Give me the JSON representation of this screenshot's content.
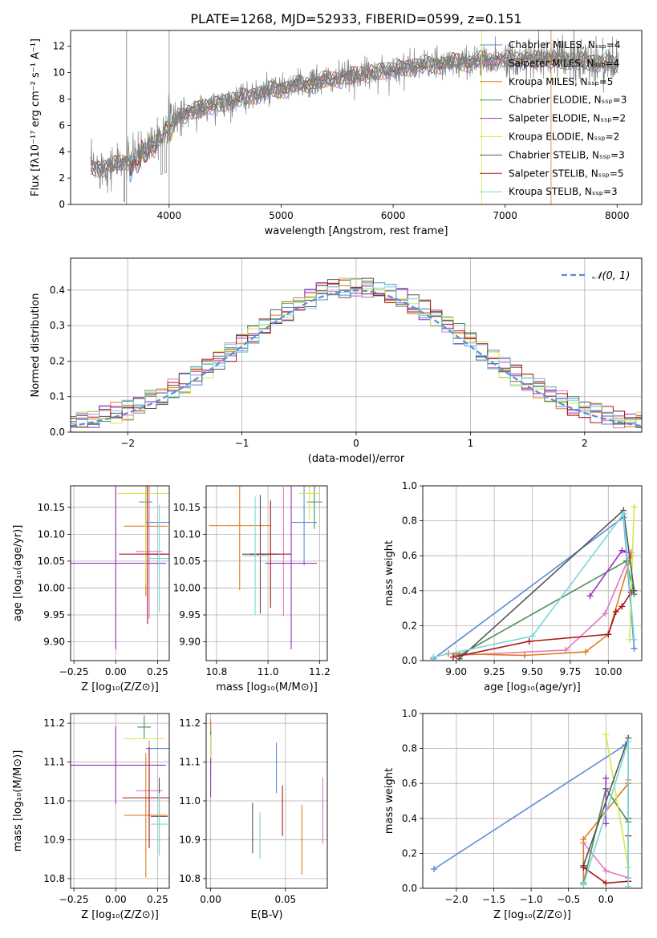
{
  "page_title": "PLATE=1268, MJD=52933, FIBERID=0599, z=0.151",
  "colors": {
    "data": "#808080",
    "series": [
      "#5b8bd9",
      "#e377c2",
      "#e07b21",
      "#4e8c57",
      "#9b30c0",
      "#d6e84a",
      "#555555",
      "#a81818",
      "#76d7d7"
    ],
    "normal": "#5b8bd9"
  },
  "legend_labels": [
    "Chabrier MILES, Nₛₛₚ=4",
    "Salpeter MILES, Nₛₛₚ=4",
    "Kroupa MILES, Nₛₛₚ=5",
    "Chabrier ELODIE, Nₛₛₚ=3",
    "Salpeter ELODIE, Nₛₛₚ=2",
    "Kroupa ELODIE, Nₛₛₚ=2",
    "Chabrier STELIB, Nₛₛₚ=3",
    "Salpeter STELIB, Nₛₛₚ=5",
    "Kroupa STELIB, Nₛₛₚ=3"
  ],
  "chart_data": [
    {
      "id": "spectrum",
      "type": "line",
      "title": "PLATE=1268, MJD=52933, FIBERID=0599, z=0.151",
      "xlabel": "wavelength [Angstrom, rest frame]",
      "ylabel": "Flux [fλ10⁻¹⁷ erg cm⁻² s⁻¹ A⁻¹]",
      "xlim": [
        3120,
        8220
      ],
      "ylim": [
        0,
        13.2
      ],
      "xticks": [
        4000,
        5000,
        6000,
        7000,
        8000
      ],
      "yticks": [
        0,
        2,
        4,
        6,
        8,
        10,
        12
      ],
      "grid": false,
      "legend_position": "top-right",
      "continuum": {
        "x": [
          3300,
          3500,
          3700,
          3850,
          3950,
          4100,
          4300,
          4600,
          5000,
          5400,
          5800,
          6200,
          6600,
          7000,
          7400,
          7800,
          8000
        ],
        "y": [
          2.8,
          2.9,
          3.6,
          5.0,
          5.9,
          6.8,
          7.3,
          8.0,
          8.8,
          9.4,
          10.0,
          10.5,
          10.8,
          11.0,
          11.0,
          10.8,
          10.6
        ]
      },
      "data_xrange": [
        3300,
        8010
      ]
    },
    {
      "id": "residuals",
      "type": "bar",
      "xlabel": "(data-model)/error",
      "ylabel": "Normed distribution",
      "xlim": [
        -2.5,
        2.5
      ],
      "ylim": [
        0,
        0.49
      ],
      "xticks": [
        -2,
        -1,
        0,
        1,
        2
      ],
      "yticks": [
        0.0,
        0.1,
        0.2,
        0.3,
        0.4
      ],
      "grid": true,
      "legend": [
        "𝒩(0, 1)"
      ],
      "legend_position": "top-right",
      "bin_width": 0.1
    },
    {
      "id": "age-vs-z",
      "type": "scatter",
      "xlabel": "Z [log₁₀(Z/Z⊙)]",
      "ylabel": "age  [log₁₀(age/yr)]",
      "xlim": [
        -0.27,
        0.32
      ],
      "ylim": [
        9.865,
        10.19
      ],
      "xticks": [
        -0.25,
        0.0,
        0.25
      ],
      "yticks": [
        9.9,
        9.95,
        10.0,
        10.05,
        10.1,
        10.15
      ],
      "grid": true,
      "points": [
        {
          "s": 0,
          "x": 0.26,
          "xe": 0.08,
          "y": 10.122,
          "ye": 0.0
        },
        {
          "s": 1,
          "x": 0.2,
          "xe": 0.08,
          "y": 10.068,
          "ye": 0.125
        },
        {
          "s": 2,
          "x": 0.18,
          "xe": 0.13,
          "y": 10.115,
          "ye": 0.13
        },
        {
          "s": 3,
          "x": 0.18,
          "xe": 0.04,
          "y": 10.16,
          "ye": 0.04
        },
        {
          "s": 4,
          "x": 0.0,
          "xe": 0.3,
          "y": 10.046,
          "ye": 0.16
        },
        {
          "s": 5,
          "x": 0.18,
          "xe": 0.17,
          "y": 10.176,
          "ye": 0.17
        },
        {
          "s": 6,
          "x": 0.25,
          "xe": 0.05,
          "y": 10.063,
          "ye": 0.0
        },
        {
          "s": 7,
          "x": 0.19,
          "xe": 0.17,
          "y": 10.063,
          "ye": 0.13
        },
        {
          "s": 8,
          "x": 0.26,
          "xe": 0.06,
          "y": 10.055,
          "ye": 0.1
        }
      ]
    },
    {
      "id": "age-vs-mass",
      "type": "scatter",
      "xlabel": "mass [log₁₀(M/M⊙)]",
      "ylabel": "",
      "xlim": [
        10.76,
        11.23
      ],
      "ylim": [
        9.865,
        10.19
      ],
      "xticks": [
        10.8,
        11.0,
        11.2
      ],
      "yticks": [
        9.9,
        9.95,
        10.0,
        10.05,
        10.1,
        10.15
      ],
      "grid": true,
      "points": [
        {
          "s": 0,
          "x": 11.14,
          "xe": 0.05,
          "y": 10.122,
          "ye": 0.08
        },
        {
          "s": 1,
          "x": 11.06,
          "xe": 0.0,
          "y": 10.068,
          "ye": 0.12
        },
        {
          "s": 2,
          "x": 10.89,
          "xe": 0.12,
          "y": 10.116,
          "ye": 0.12
        },
        {
          "s": 3,
          "x": 11.18,
          "xe": 0.03,
          "y": 10.16,
          "ye": 0.05
        },
        {
          "s": 4,
          "x": 11.09,
          "xe": 0.1,
          "y": 10.046,
          "ye": 0.16
        },
        {
          "s": 5,
          "x": 11.16,
          "xe": 0.04,
          "y": 10.176,
          "ye": 0.05
        },
        {
          "s": 6,
          "x": 10.97,
          "xe": 0.07,
          "y": 10.063,
          "ye": 0.11
        },
        {
          "s": 7,
          "x": 11.01,
          "xe": 0.08,
          "y": 10.063,
          "ye": 0.1
        },
        {
          "s": 8,
          "x": 10.95,
          "xe": 0.05,
          "y": 10.06,
          "ye": 0.11
        }
      ]
    },
    {
      "id": "mass-weight-vs-age",
      "type": "line",
      "xlabel": "age  [log₁₀(age/yr)]",
      "ylabel": "mass weight",
      "xlim": [
        8.78,
        10.22
      ],
      "ylim": [
        0,
        1.0
      ],
      "xticks": [
        9.0,
        9.25,
        9.5,
        9.75,
        10.0
      ],
      "yticks": [
        0.0,
        0.2,
        0.4,
        0.6,
        0.8,
        1.0
      ],
      "grid": true,
      "series": [
        {
          "s": 0,
          "x": [
            8.85,
            10.1,
            10.17
          ],
          "y": [
            0.01,
            0.82,
            0.07
          ]
        },
        {
          "s": 1,
          "x": [
            9.0,
            9.72,
            9.98,
            10.15
          ],
          "y": [
            0.03,
            0.06,
            0.27,
            0.62
          ]
        },
        {
          "s": 2,
          "x": [
            8.95,
            9.45,
            9.85,
            10.0,
            10.15
          ],
          "y": [
            0.04,
            0.03,
            0.05,
            0.15,
            0.6
          ]
        },
        {
          "s": 3,
          "x": [
            9.02,
            10.12,
            10.17
          ],
          "y": [
            0.03,
            0.57,
            0.38
          ]
        },
        {
          "s": 4,
          "x": [
            9.88,
            10.09,
            10.12
          ],
          "y": [
            0.37,
            0.63,
            0.62
          ]
        },
        {
          "s": 5,
          "x": [
            10.14,
            10.17
          ],
          "y": [
            0.12,
            0.88
          ]
        },
        {
          "s": 6,
          "x": [
            9.02,
            10.1,
            10.17
          ],
          "y": [
            0.01,
            0.86,
            0.4
          ]
        },
        {
          "s": 7,
          "x": [
            8.98,
            9.48,
            10.0,
            10.05,
            10.09,
            10.15
          ],
          "y": [
            0.02,
            0.11,
            0.15,
            0.28,
            0.31,
            0.39
          ]
        },
        {
          "s": 8,
          "x": [
            8.85,
            9.5,
            10.1,
            10.17
          ],
          "y": [
            0.02,
            0.14,
            0.84,
            0.12
          ]
        }
      ]
    },
    {
      "id": "mass-vs-z",
      "type": "scatter",
      "xlabel": "Z [log₁₀(Z/Z⊙)]",
      "ylabel": "mass [log₁₀(M/M⊙)]",
      "xlim": [
        -0.27,
        0.32
      ],
      "ylim": [
        10.775,
        11.225
      ],
      "xticks": [
        -0.25,
        0.0,
        0.25
      ],
      "yticks": [
        10.8,
        10.9,
        11.0,
        11.1,
        11.2
      ],
      "grid": true,
      "points": [
        {
          "s": 0,
          "x": 0.26,
          "xe": 0.08,
          "y": 11.135,
          "ye": 0.0
        },
        {
          "s": 1,
          "x": 0.2,
          "xe": 0.08,
          "y": 11.026,
          "ye": 0.13
        },
        {
          "s": 2,
          "x": 0.18,
          "xe": 0.13,
          "y": 10.963,
          "ye": 0.16
        },
        {
          "s": 3,
          "x": 0.17,
          "xe": 0.04,
          "y": 11.19,
          "ye": 0.03
        },
        {
          "s": 4,
          "x": 0.0,
          "xe": 0.3,
          "y": 11.092,
          "ye": 0.1
        },
        {
          "s": 5,
          "x": 0.17,
          "xe": 0.12,
          "y": 11.16,
          "ye": 0.0
        },
        {
          "s": 6,
          "x": 0.26,
          "xe": 0.05,
          "y": 10.96,
          "ye": 0.1
        },
        {
          "s": 7,
          "x": 0.2,
          "xe": 0.16,
          "y": 11.008,
          "ye": 0.13
        },
        {
          "s": 8,
          "x": 0.26,
          "xe": 0.05,
          "y": 10.94,
          "ye": 0.08
        }
      ]
    },
    {
      "id": "mass-vs-ebv",
      "type": "scatter",
      "xlabel": "E(B-V)",
      "ylabel": "",
      "xlim": [
        -0.003,
        0.078
      ],
      "ylim": [
        10.775,
        11.225
      ],
      "xticks": [
        0.0,
        0.05
      ],
      "yticks": [
        10.8,
        10.9,
        11.0,
        11.1,
        11.2
      ],
      "grid": true,
      "points": [
        {
          "s": 0,
          "x": 0.0,
          "xe": 0.0,
          "y": 11.15,
          "ye": 0.05
        },
        {
          "s": 1,
          "x": 0.0,
          "xe": 0.0,
          "y": 11.1,
          "ye": 0.03
        },
        {
          "s": 2,
          "x": 0.0,
          "xe": 0.0,
          "y": 11.18,
          "ye": 0.03
        },
        {
          "s": 3,
          "x": 0.0,
          "xe": 0.0,
          "y": 11.15,
          "ye": 0.03
        },
        {
          "s": 4,
          "x": 0.0,
          "xe": 0.0,
          "y": 11.09,
          "ye": 0.08
        },
        {
          "s": 5,
          "x": 0.0,
          "xe": 0.0,
          "y": 11.14,
          "ye": 0.03
        },
        {
          "s": 2,
          "x": 0.061,
          "xe": 0.0,
          "y": 10.9,
          "ye": 0.09
        },
        {
          "s": 0,
          "x": 0.044,
          "xe": 0.0,
          "y": 11.085,
          "ye": 0.065
        },
        {
          "s": 6,
          "x": 0.028,
          "xe": 0.0,
          "y": 10.93,
          "ye": 0.065
        },
        {
          "s": 8,
          "x": 0.033,
          "xe": 0.0,
          "y": 10.91,
          "ye": 0.06
        },
        {
          "s": 7,
          "x": 0.048,
          "xe": 0.0,
          "y": 10.975,
          "ye": 0.065
        },
        {
          "s": 1,
          "x": 0.075,
          "xe": 0.0,
          "y": 10.975,
          "ye": 0.085
        }
      ]
    },
    {
      "id": "mass-weight-vs-z",
      "type": "line",
      "xlabel": "Z [log₁₀(Z/Z⊙)]",
      "ylabel": "mass weight",
      "xlim": [
        -2.45,
        0.48
      ],
      "ylim": [
        0,
        1.0
      ],
      "xticks": [
        -2.0,
        -1.5,
        -1.0,
        -0.5,
        0.0
      ],
      "yticks": [
        0.0,
        0.2,
        0.4,
        0.6,
        0.8,
        1.0
      ],
      "grid": true,
      "series": [
        {
          "s": 0,
          "x": [
            -2.3,
            0.26
          ],
          "y": [
            0.11,
            0.82
          ]
        },
        {
          "s": 1,
          "x": [
            -0.3,
            0.0,
            0.3,
            0.3
          ],
          "y": [
            0.26,
            0.1,
            0.06,
            0.62
          ]
        },
        {
          "s": 2,
          "x": [
            -0.3,
            -0.3,
            0.3
          ],
          "y": [
            0.03,
            0.28,
            0.6
          ]
        },
        {
          "s": 3,
          "x": [
            -0.3,
            0.0,
            0.3
          ],
          "y": [
            0.03,
            0.57,
            0.38
          ]
        },
        {
          "s": 4,
          "x": [
            0.0,
            0.0
          ],
          "y": [
            0.37,
            0.63
          ]
        },
        {
          "s": 5,
          "x": [
            0.0,
            0.3
          ],
          "y": [
            0.88,
            0.12
          ]
        },
        {
          "s": 6,
          "x": [
            -0.3,
            0.3,
            0.3
          ],
          "y": [
            0.13,
            0.86,
            0.4
          ]
        },
        {
          "s": 7,
          "x": [
            -0.3,
            0.0,
            0.3,
            0.3
          ],
          "y": [
            0.12,
            0.03,
            0.04,
            0.3
          ]
        },
        {
          "s": 8,
          "x": [
            -0.3,
            0.3,
            0.3
          ],
          "y": [
            0.02,
            0.84,
            0.01
          ]
        }
      ]
    }
  ]
}
